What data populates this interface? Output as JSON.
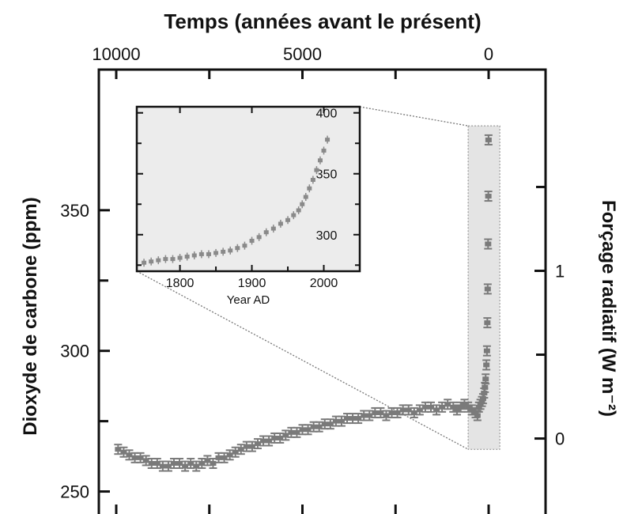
{
  "chart_data": [
    {
      "id": "main",
      "type": "scatter",
      "title": "",
      "xlabel": "Temps (années avant le présent)",
      "ylabel": "Dioxyde de carbone (ppm)",
      "y2label": "Forçage radiatif (W m⁻²)",
      "xlim": [
        10000,
        0
      ],
      "ylim": [
        242,
        400
      ],
      "y2lim": [
        -0.45,
        2.2
      ],
      "xticks": [
        10000,
        5000,
        0
      ],
      "xtick_labels": [
        "10000",
        "5000",
        "0"
      ],
      "yticks": [
        250,
        300,
        350
      ],
      "ytick_labels": [
        "250",
        "300",
        "350"
      ],
      "y2ticks": [
        0,
        1
      ],
      "y2tick_labels": [
        "0",
        "1"
      ],
      "grid": false,
      "series": [
        {
          "color": "#7a7a7a",
          "x": [
            9950,
            9800,
            9650,
            9500,
            9350,
            9200,
            9050,
            8900,
            8750,
            8600,
            8450,
            8300,
            8150,
            8000,
            7850,
            7700,
            7550,
            7400,
            7250,
            7100,
            6950,
            6800,
            6650,
            6500,
            6350,
            6200,
            6050,
            5900,
            5750,
            5600,
            5450,
            5300,
            5150,
            5000,
            4850,
            4700,
            4550,
            4400,
            4250,
            4100,
            3950,
            3800,
            3650,
            3500,
            3350,
            3200,
            3050,
            2900,
            2750,
            2600,
            2450,
            2300,
            2150,
            2000,
            1850,
            1700,
            1550,
            1400,
            1250,
            1100,
            950,
            850,
            750,
            650,
            550,
            450,
            350,
            300,
            260,
            220,
            180,
            150,
            120,
            100,
            80,
            60,
            45,
            35,
            25,
            15,
            8,
            3
          ],
          "y": [
            265,
            264,
            263,
            262,
            262,
            261,
            260,
            260,
            259,
            259,
            260,
            260,
            259,
            260,
            259,
            260,
            261,
            260,
            262,
            262,
            263,
            264,
            265,
            266,
            266,
            267,
            268,
            268,
            269,
            269,
            270,
            271,
            271,
            272,
            272,
            273,
            273,
            274,
            274,
            275,
            275,
            276,
            276,
            276,
            277,
            277,
            278,
            278,
            277,
            278,
            278,
            279,
            279,
            278,
            279,
            280,
            280,
            279,
            280,
            281,
            280,
            279,
            280,
            281,
            280,
            279,
            278,
            277,
            280,
            281,
            282,
            283,
            285,
            287,
            290,
            295,
            300,
            310,
            322,
            338,
            355,
            375
          ]
        }
      ]
    },
    {
      "id": "inset",
      "type": "scatter",
      "title": "",
      "xlabel": "Year AD",
      "ylabel": "",
      "xlim": [
        1740,
        2050
      ],
      "ylim": [
        270,
        405
      ],
      "xticks": [
        1800,
        1900,
        2000
      ],
      "xtick_labels": [
        "1800",
        "1900",
        "2000"
      ],
      "yticks": [
        300,
        350,
        400
      ],
      "ytick_labels": [
        "300",
        "350",
        "400"
      ],
      "grid": false,
      "series": [
        {
          "color": "#8a8a8a",
          "x": [
            1750,
            1760,
            1770,
            1780,
            1790,
            1800,
            1810,
            1820,
            1830,
            1840,
            1850,
            1860,
            1870,
            1880,
            1890,
            1900,
            1910,
            1920,
            1930,
            1940,
            1950,
            1958,
            1965,
            1970,
            1975,
            1980,
            1985,
            1990,
            1995,
            2000,
            2005
          ],
          "y": [
            277,
            278,
            279,
            280,
            280,
            281,
            282,
            283,
            284,
            284,
            285,
            286,
            287,
            289,
            291,
            295,
            298,
            302,
            305,
            309,
            312,
            316,
            320,
            325,
            331,
            338,
            345,
            353,
            361,
            369,
            378
          ]
        }
      ]
    }
  ]
}
